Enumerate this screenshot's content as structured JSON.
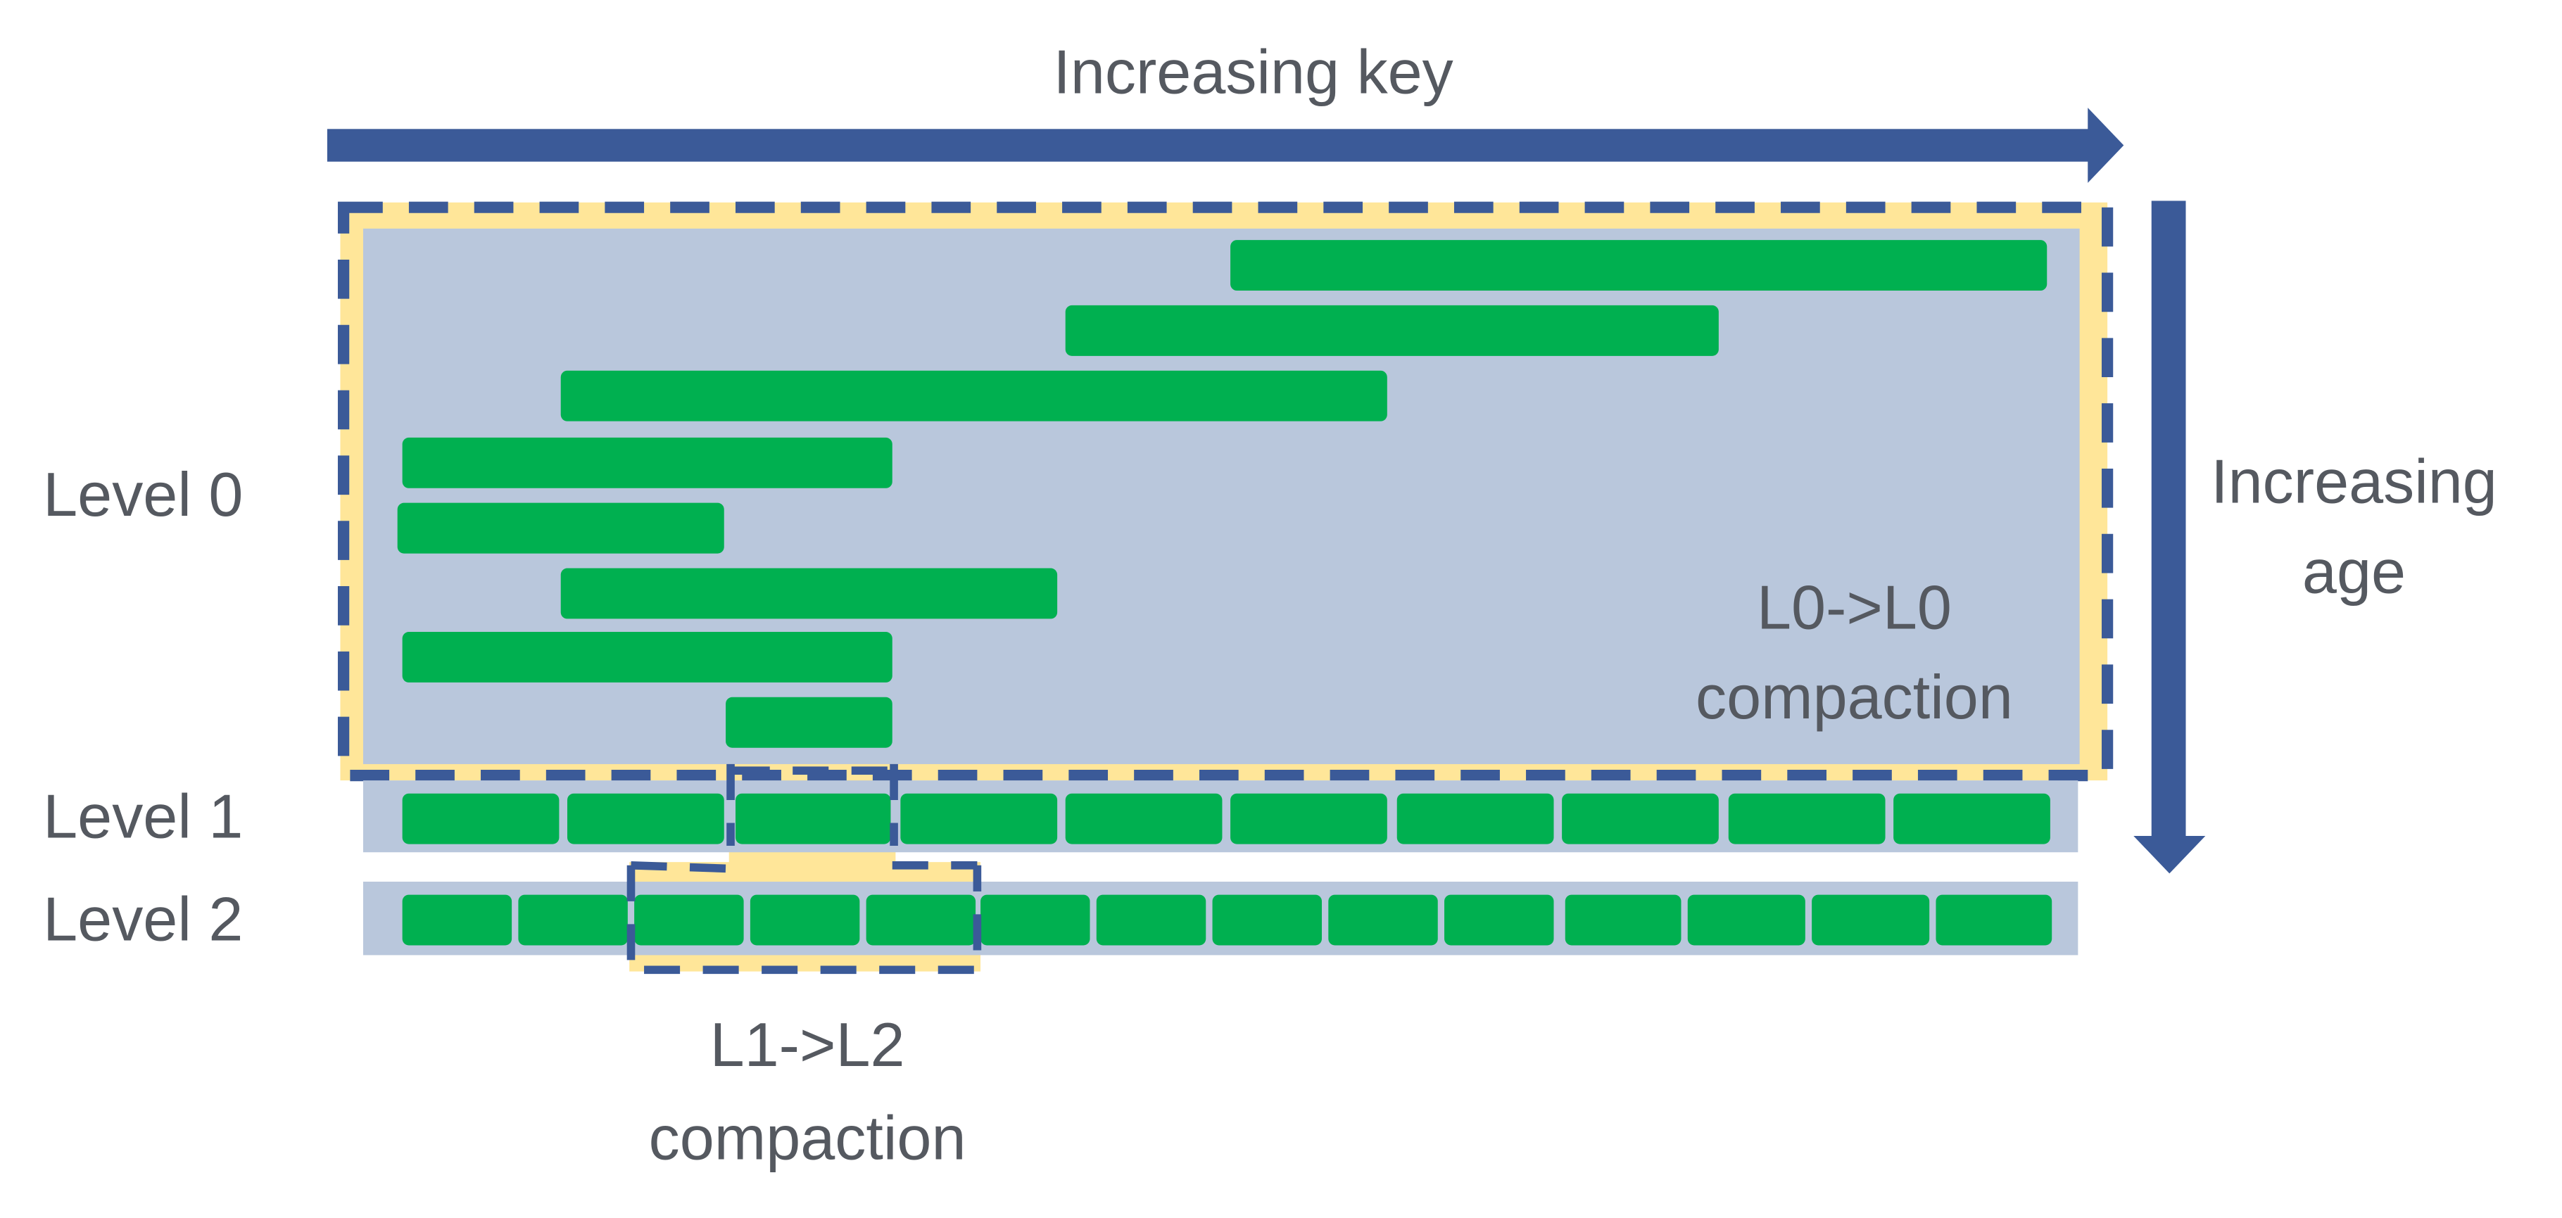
{
  "labels": {
    "key_axis": "Increasing key",
    "age_axis_line1": "Increasing",
    "age_axis_line2": "age",
    "level0": "Level 0",
    "level1": "Level 1",
    "level2": "Level 2",
    "l0_compaction_line1": "L0->L0",
    "l0_compaction_line2": "compaction",
    "l1_compaction_line1": "L1->L2",
    "l1_compaction_line2": "compaction"
  },
  "colors": {
    "arrow": "#3b5a98",
    "sst_file": "#00b050",
    "level_background": "#b9c7dc",
    "compaction_highlight": "#ffe699",
    "text": "#555960"
  }
}
